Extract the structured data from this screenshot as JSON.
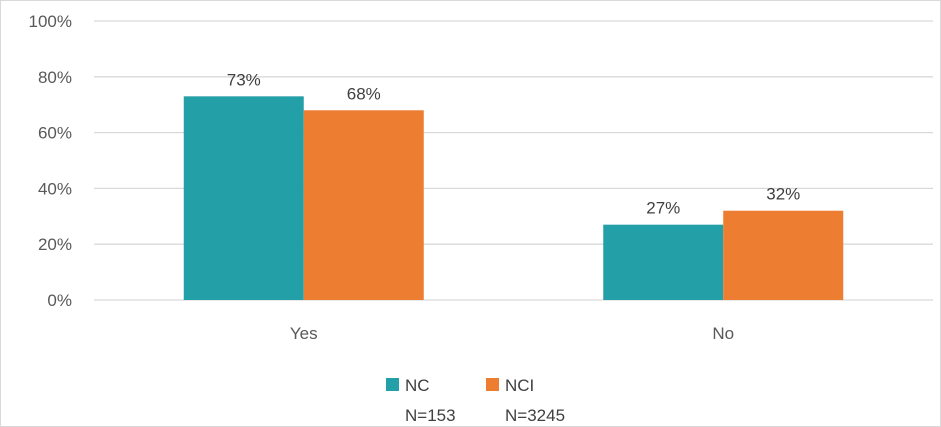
{
  "chart_data": {
    "type": "bar",
    "categories": [
      "Yes",
      "No"
    ],
    "series": [
      {
        "name": "NC",
        "sample": "N=153",
        "color": "#239FA7",
        "values": [
          73,
          27
        ],
        "labels": [
          "73%",
          "27%"
        ]
      },
      {
        "name": "NCI",
        "sample": "N=3245",
        "color": "#ED7D31",
        "values": [
          68,
          32
        ],
        "labels": [
          "68%",
          "32%"
        ]
      }
    ],
    "y_ticks": [
      "0%",
      "20%",
      "40%",
      "60%",
      "80%",
      "100%"
    ],
    "ylim": [
      0,
      100
    ],
    "grid": true,
    "legend_position": "bottom",
    "colors": {
      "gridline": "#d9d9d9",
      "text": "#595959"
    }
  }
}
